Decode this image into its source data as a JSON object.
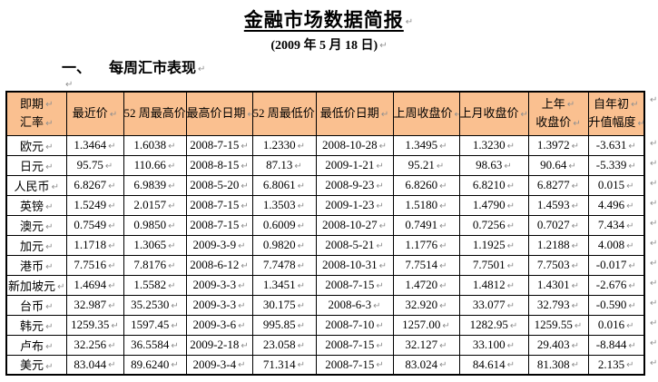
{
  "page": {
    "title": "金融市场数据简报",
    "date": "(2009 年 5 月 18 日)",
    "section_no": "一、",
    "section_title": "每周汇市表现"
  },
  "icons": {
    "pilcrow": "↵"
  },
  "colors": {
    "header_bg": "#FAC090",
    "border": "#000000",
    "mark_grey": "#8f8f8f"
  },
  "table": {
    "headers": [
      [
        "即期",
        "汇率"
      ],
      [
        "最近价"
      ],
      [
        "52 周最高价"
      ],
      [
        "最高价日期"
      ],
      [
        "52 周最低价"
      ],
      [
        "最低价日期"
      ],
      [
        "上周收盘价"
      ],
      [
        "上月收盘价"
      ],
      [
        "上年",
        "收盘价"
      ],
      [
        "自年初",
        "升值幅度"
      ]
    ],
    "rows": [
      [
        "欧元",
        "1.3464",
        "1.6038",
        "2008-7-15",
        "1.2330",
        "2008-10-28",
        "1.3495",
        "1.3230",
        "1.3972",
        "-3.631"
      ],
      [
        "日元",
        "95.75",
        "110.66",
        "2008-8-15",
        "87.13",
        "2009-1-21",
        "95.21",
        "98.63",
        "90.64",
        "-5.339"
      ],
      [
        "人民币",
        "6.8267",
        "6.9839",
        "2008-5-20",
        "6.8061",
        "2008-9-23",
        "6.8260",
        "6.8210",
        "6.8277",
        "0.015"
      ],
      [
        "英镑",
        "1.5249",
        "2.0157",
        "2008-7-15",
        "1.3503",
        "2009-1-23",
        "1.5180",
        "1.4790",
        "1.4593",
        "4.496"
      ],
      [
        "澳元",
        "0.7549",
        "0.9850",
        "2008-7-15",
        "0.6009",
        "2008-10-27",
        "0.7491",
        "0.7256",
        "0.7027",
        "7.434"
      ],
      [
        "加元",
        "1.1718",
        "1.3065",
        "2009-3-9",
        "0.9820",
        "2008-5-21",
        "1.1776",
        "1.1925",
        "1.2188",
        "4.008"
      ],
      [
        "港币",
        "7.7516",
        "7.8176",
        "2008-6-12",
        "7.7478",
        "2008-10-31",
        "7.7514",
        "7.7501",
        "7.7503",
        "-0.017"
      ],
      [
        "新加坡元",
        "1.4694",
        "1.5582",
        "2009-3-3",
        "1.3451",
        "2008-7-15",
        "1.4720",
        "1.4812",
        "1.4301",
        "-2.676"
      ],
      [
        "台币",
        "32.987",
        "35.2530",
        "2009-3-3",
        "30.175",
        "2008-6-3",
        "32.920",
        "33.077",
        "32.793",
        "-0.590"
      ],
      [
        "韩元",
        "1259.35",
        "1597.45",
        "2009-3-6",
        "995.85",
        "2008-7-10",
        "1257.00",
        "1282.95",
        "1259.55",
        "0.016"
      ],
      [
        "卢布",
        "32.256",
        "36.5584",
        "2009-2-18",
        "23.058",
        "2008-7-15",
        "32.127",
        "33.100",
        "29.403",
        "-8.844"
      ],
      [
        "美元",
        "83.044",
        "89.6240",
        "2009-3-4",
        "71.314",
        "2008-7-15",
        "83.024",
        "84.614",
        "81.308",
        "2.135"
      ]
    ]
  }
}
